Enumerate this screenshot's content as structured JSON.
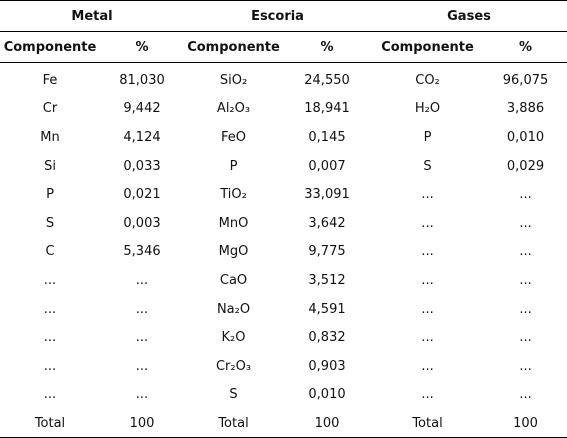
{
  "groups": [
    "Metal",
    "Escoria",
    "Gases"
  ],
  "col_headers": {
    "component": "Componente",
    "percent": "%"
  },
  "rows": [
    [
      {
        "c": "Fe",
        "v": "81,030"
      },
      {
        "c": "SiO₂",
        "v": "24,550"
      },
      {
        "c": "CO₂",
        "v": "96,075"
      }
    ],
    [
      {
        "c": "Cr",
        "v": "9,442"
      },
      {
        "c": "Al₂O₃",
        "v": "18,941"
      },
      {
        "c": "H₂O",
        "v": "3,886"
      }
    ],
    [
      {
        "c": "Mn",
        "v": "4,124"
      },
      {
        "c": "FeO",
        "v": "0,145"
      },
      {
        "c": "P",
        "v": "0,010"
      }
    ],
    [
      {
        "c": "Si",
        "v": "0,033"
      },
      {
        "c": "P",
        "v": "0,007"
      },
      {
        "c": "S",
        "v": "0,029"
      }
    ],
    [
      {
        "c": "P",
        "v": "0,021"
      },
      {
        "c": "TiO₂",
        "v": "33,091"
      },
      {
        "c": "...",
        "v": "..."
      }
    ],
    [
      {
        "c": "S",
        "v": "0,003"
      },
      {
        "c": "MnO",
        "v": "3,642"
      },
      {
        "c": "...",
        "v": "..."
      }
    ],
    [
      {
        "c": "C",
        "v": "5,346"
      },
      {
        "c": "MgO",
        "v": "9,775"
      },
      {
        "c": "...",
        "v": "..."
      }
    ],
    [
      {
        "c": "...",
        "v": "..."
      },
      {
        "c": "CaO",
        "v": "3,512"
      },
      {
        "c": "...",
        "v": "..."
      }
    ],
    [
      {
        "c": "...",
        "v": "..."
      },
      {
        "c": "Na₂O",
        "v": "4,591"
      },
      {
        "c": "...",
        "v": "..."
      }
    ],
    [
      {
        "c": "...",
        "v": "..."
      },
      {
        "c": "K₂O",
        "v": "0,832"
      },
      {
        "c": "...",
        "v": "..."
      }
    ],
    [
      {
        "c": "...",
        "v": "..."
      },
      {
        "c": "Cr₂O₃",
        "v": "0,903"
      },
      {
        "c": "...",
        "v": "..."
      }
    ],
    [
      {
        "c": "...",
        "v": "..."
      },
      {
        "c": "S",
        "v": "0,010"
      },
      {
        "c": "...",
        "v": "..."
      }
    ]
  ],
  "total": [
    {
      "c": "Total",
      "v": "100"
    },
    {
      "c": "Total",
      "v": "100"
    },
    {
      "c": "Total",
      "v": "100"
    }
  ]
}
